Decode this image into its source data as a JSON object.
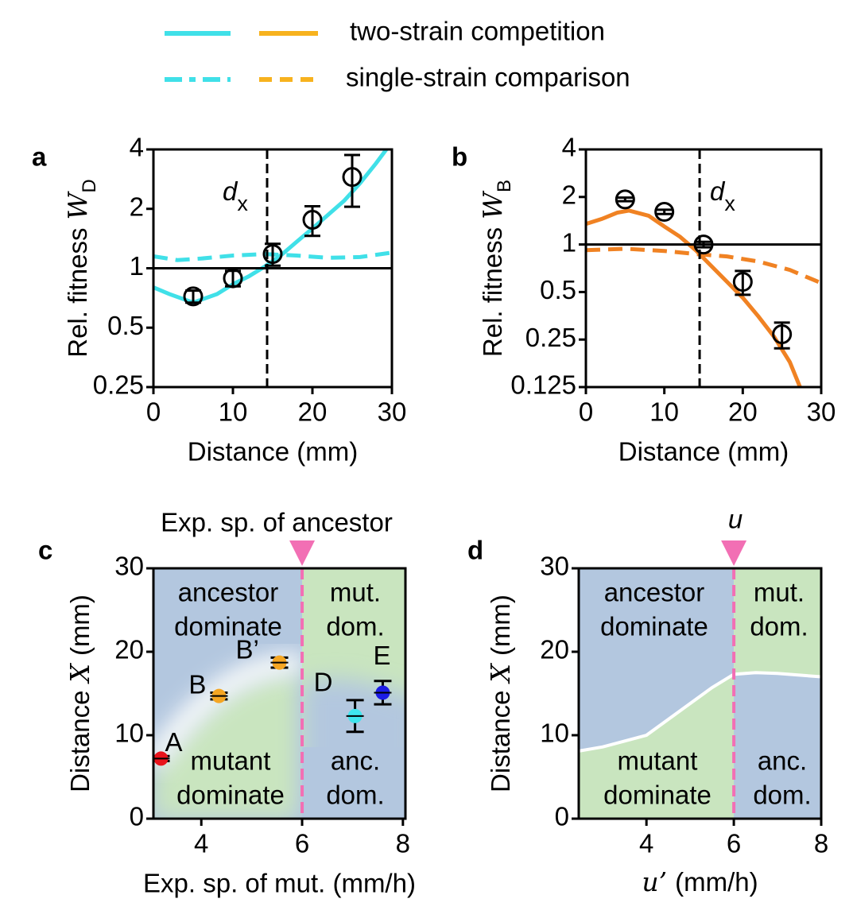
{
  "legend": {
    "items": [
      {
        "label": "two-strain competition",
        "colors": [
          "#40e0e8",
          "#f7b21e"
        ],
        "dashed": false
      },
      {
        "label": "single-strain comparison",
        "colors": [
          "#40e0e8",
          "#f7b21e"
        ],
        "dashed": true
      }
    ]
  },
  "chart_data": [
    {
      "type": "line",
      "panel": "a",
      "y_label": "Rel. fitness",
      "y_label_symbol": "W",
      "y_label_subscript": "D",
      "x_label": "Distance (mm)",
      "xlim": [
        0,
        30
      ],
      "xticks": [
        0,
        10,
        20,
        30
      ],
      "ylim": [
        0.25,
        4
      ],
      "yticks": [
        0.25,
        0.5,
        1,
        2,
        4
      ],
      "log_y": true,
      "log_base": 2,
      "hline": 1,
      "vline": 14.3,
      "annotation": {
        "symbol": "d",
        "subscript": "x"
      },
      "series": [
        {
          "style": "solid",
          "color": "#40e0e8",
          "x": [
            0,
            2,
            5,
            8,
            10,
            12,
            14,
            16,
            18,
            20,
            22,
            24,
            26,
            28,
            29.3
          ],
          "values": [
            0.8,
            0.74,
            0.67,
            0.74,
            0.83,
            0.91,
            1.02,
            1.16,
            1.36,
            1.59,
            1.87,
            2.2,
            2.7,
            3.4,
            4
          ]
        },
        {
          "style": "dashed",
          "color": "#40e0e8",
          "x": [
            0,
            3,
            6,
            10,
            14,
            18,
            22,
            26,
            30
          ],
          "values": [
            1.15,
            1.1,
            1.12,
            1.16,
            1.18,
            1.16,
            1.13,
            1.14,
            1.2
          ]
        }
      ],
      "points": {
        "x": [
          5,
          10,
          15,
          20,
          25
        ],
        "values": [
          0.72,
          0.89,
          1.18,
          1.76,
          2.9
        ],
        "errors": [
          0.05,
          0.08,
          0.15,
          0.3,
          0.85
        ]
      }
    },
    {
      "type": "line",
      "panel": "b",
      "y_label": "Rel. fitness",
      "y_label_symbol": "W",
      "y_label_subscript": "B",
      "x_label": "Distance (mm)",
      "xlim": [
        0,
        30
      ],
      "xticks": [
        0,
        10,
        20,
        30
      ],
      "ylim": [
        0.125,
        4
      ],
      "yticks": [
        0.125,
        0.25,
        0.5,
        1,
        2,
        4
      ],
      "log_y": true,
      "log_base": 2,
      "hline": 1,
      "vline": 14.5,
      "annotation": {
        "symbol": "d",
        "subscript": "x"
      },
      "series": [
        {
          "style": "solid",
          "color": "#f08223",
          "x": [
            0,
            2,
            4,
            5.5,
            8,
            10,
            12,
            14,
            16,
            18,
            20,
            22,
            24,
            26,
            27.3
          ],
          "values": [
            1.35,
            1.45,
            1.59,
            1.64,
            1.52,
            1.3,
            1.12,
            0.92,
            0.73,
            0.58,
            0.46,
            0.35,
            0.26,
            0.18,
            0.125
          ]
        },
        {
          "style": "dashed",
          "color": "#f08223",
          "x": [
            0,
            5,
            10,
            14,
            18,
            22,
            26,
            30
          ],
          "values": [
            0.92,
            0.94,
            0.91,
            0.87,
            0.84,
            0.78,
            0.69,
            0.57
          ]
        }
      ],
      "points": {
        "x": [
          5,
          10,
          15,
          20,
          25
        ],
        "values": [
          1.93,
          1.61,
          1.0,
          0.58,
          0.27
        ],
        "errors": [
          0.05,
          0.05,
          0.04,
          0.1,
          0.05
        ]
      }
    },
    {
      "type": "scatter",
      "panel": "c",
      "title": "Exp. sp. of ancestor",
      "title_color": "#f26fb4",
      "y_label": "Distance",
      "y_label_symbol": "X",
      "y_label_unit": "(mm)",
      "x_label": "Exp. sp. of mut. (mm/h)",
      "xlim": [
        3.05,
        8.05
      ],
      "xticks": [
        4,
        6,
        8
      ],
      "ylim": [
        0,
        30
      ],
      "yticks": [
        0,
        10,
        20,
        30
      ],
      "vline": 6,
      "region_colors": [
        "#b3c7df",
        "#c9e5bf"
      ],
      "region_labels": [
        [
          "ancestor",
          "dominate"
        ],
        [
          "mut.",
          "dom."
        ],
        [
          "mutant",
          "dominate"
        ],
        [
          "anc.",
          "dom."
        ]
      ],
      "points": {
        "labels": [
          "A",
          "B",
          "B’",
          "D",
          "E"
        ],
        "x": [
          3.2,
          4.35,
          5.55,
          7.05,
          7.6
        ],
        "values": [
          7.2,
          14.7,
          18.7,
          12.3,
          15.1
        ],
        "errors": [
          0.3,
          0.4,
          0.6,
          1.9,
          1.4
        ],
        "colors": [
          "#e8141c",
          "#f5a623",
          "#f5a623",
          "#3fe6ee",
          "#1c1ce6"
        ]
      }
    },
    {
      "type": "region",
      "panel": "d",
      "title_symbol": "u",
      "title_color": "#f26fb4",
      "y_label": "Distance",
      "y_label_symbol": "X",
      "y_label_unit": "(mm)",
      "x_label_symbol": "u’",
      "x_label": "(mm/h)",
      "xlim": [
        2.45,
        8
      ],
      "xticks": [
        4,
        6,
        8
      ],
      "ylim": [
        0,
        30
      ],
      "yticks": [
        0,
        10,
        20,
        30
      ],
      "vline": 6,
      "region_colors": [
        "#b3c7df",
        "#c9e5bf"
      ],
      "region_labels": [
        [
          "ancestor",
          "dominate"
        ],
        [
          "mut.",
          "dom."
        ],
        [
          "mutant",
          "dominate"
        ],
        [
          "anc.",
          "dom."
        ]
      ],
      "boundary": {
        "color": "#ffffff",
        "x": [
          2.45,
          3,
          4,
          5,
          5.5,
          6,
          6.5,
          7,
          8
        ],
        "values": [
          8.1,
          8.6,
          10.0,
          13.8,
          15.7,
          17.3,
          17.5,
          17.4,
          17.0
        ]
      }
    }
  ]
}
